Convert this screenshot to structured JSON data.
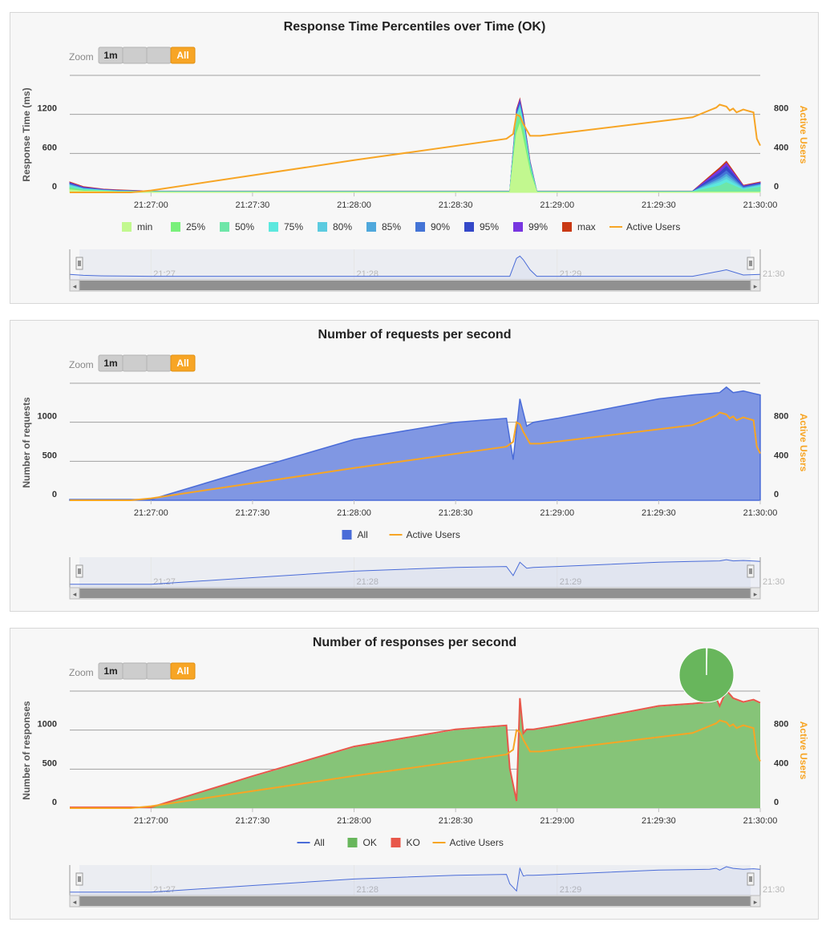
{
  "colors": {
    "active_users": "#f7a525",
    "all_requests": "#4a6cd8",
    "ok": "#68b65c",
    "ko": "#e8574a",
    "all_line": "#4a6cd8",
    "percentiles": [
      "#c2f88f",
      "#79f07b",
      "#6ee6a8",
      "#5ce8de",
      "#5ccbe0",
      "#4fa8dc",
      "#4474d6",
      "#3448c8",
      "#7836e0",
      "#c93914"
    ]
  },
  "zoom": {
    "label": "Zoom",
    "buttons": [
      "1m",
      "",
      "",
      "All"
    ],
    "selected": "All"
  },
  "navigator": {
    "labels": [
      "21:27",
      "21:28",
      "21:29",
      "21:30"
    ],
    "left_arrow": "◂",
    "right_arrow": "▸"
  },
  "chart_data": [
    {
      "type": "area",
      "title": "Response Time Percentiles over Time (OK)",
      "ylabel": "Response Time (ms)",
      "y2label": "Active Users",
      "ylim": [
        0,
        1800
      ],
      "y2lim": [
        0,
        1200
      ],
      "yticks": [
        0,
        600,
        1200
      ],
      "y2ticks": [
        0,
        400,
        800
      ],
      "x_tick_labels": [
        "21:27:00",
        "21:27:30",
        "21:28:00",
        "21:28:30",
        "21:29:00",
        "21:29:30",
        "21:30:00"
      ],
      "x_range_seconds": [
        -24,
        180
      ],
      "legend": [
        "min",
        "25%",
        "50%",
        "75%",
        "80%",
        "85%",
        "90%",
        "95%",
        "99%",
        "max",
        "Active Users"
      ],
      "grid": true,
      "legend_position": "bottom",
      "series": [
        {
          "name": "min",
          "x": [
            -24,
            -20,
            -14,
            -10,
            0,
            60,
            106,
            108,
            109,
            110,
            112,
            114,
            170,
            180
          ],
          "y": [
            40,
            20,
            15,
            10,
            5,
            5,
            5,
            900,
            1050,
            800,
            300,
            5,
            5,
            5
          ]
        },
        {
          "name": "25%",
          "x": [
            -24,
            -20,
            -14,
            -10,
            0,
            60,
            106,
            108,
            109,
            110,
            112,
            114,
            170,
            180
          ],
          "y": [
            60,
            30,
            20,
            10,
            8,
            8,
            8,
            1000,
            1150,
            900,
            350,
            8,
            8,
            8
          ]
        },
        {
          "name": "50%",
          "x": [
            -24,
            -20,
            -14,
            -10,
            0,
            60,
            106,
            108,
            109,
            110,
            112,
            114,
            160,
            168,
            170,
            175,
            180
          ],
          "y": [
            80,
            40,
            25,
            15,
            10,
            10,
            10,
            1100,
            1250,
            1000,
            400,
            10,
            10,
            100,
            150,
            40,
            80
          ]
        },
        {
          "name": "75%",
          "x": [
            -24,
            -20,
            -14,
            -10,
            0,
            60,
            106,
            108,
            109,
            110,
            112,
            114,
            160,
            168,
            170,
            175,
            180
          ],
          "y": [
            100,
            50,
            30,
            20,
            12,
            12,
            12,
            1150,
            1300,
            1050,
            420,
            12,
            12,
            150,
            200,
            50,
            100
          ]
        },
        {
          "name": "80%",
          "x": [
            -24,
            -20,
            -14,
            -10,
            0,
            60,
            106,
            108,
            109,
            110,
            112,
            114,
            160,
            168,
            170,
            175,
            180
          ],
          "y": [
            110,
            55,
            32,
            22,
            13,
            13,
            13,
            1170,
            1320,
            1070,
            430,
            13,
            13,
            180,
            240,
            60,
            110
          ]
        },
        {
          "name": "85%",
          "x": [
            -24,
            -20,
            -14,
            -10,
            0,
            60,
            106,
            108,
            109,
            110,
            112,
            114,
            160,
            168,
            170,
            175,
            180
          ],
          "y": [
            120,
            60,
            35,
            25,
            14,
            14,
            14,
            1190,
            1340,
            1090,
            440,
            14,
            14,
            210,
            280,
            70,
            120
          ]
        },
        {
          "name": "90%",
          "x": [
            -24,
            -20,
            -14,
            -10,
            0,
            60,
            106,
            108,
            109,
            110,
            112,
            114,
            160,
            168,
            170,
            175,
            180
          ],
          "y": [
            130,
            65,
            38,
            28,
            15,
            15,
            15,
            1210,
            1360,
            1110,
            450,
            15,
            15,
            250,
            330,
            80,
            130
          ]
        },
        {
          "name": "95%",
          "x": [
            -24,
            -20,
            -14,
            -10,
            0,
            60,
            106,
            108,
            109,
            110,
            112,
            114,
            160,
            168,
            170,
            175,
            180
          ],
          "y": [
            140,
            70,
            40,
            30,
            16,
            16,
            16,
            1230,
            1380,
            1130,
            460,
            16,
            16,
            300,
            400,
            90,
            140
          ]
        },
        {
          "name": "99%",
          "x": [
            -24,
            -20,
            -14,
            -10,
            0,
            60,
            106,
            108,
            109,
            110,
            112,
            114,
            160,
            168,
            170,
            175,
            180
          ],
          "y": [
            150,
            80,
            45,
            35,
            18,
            18,
            18,
            1260,
            1420,
            1160,
            470,
            18,
            18,
            350,
            450,
            100,
            150
          ]
        },
        {
          "name": "max",
          "x": [
            -24,
            -20,
            -14,
            -10,
            0,
            60,
            106,
            108,
            109,
            110,
            112,
            114,
            160,
            168,
            170,
            175,
            180
          ],
          "y": [
            160,
            90,
            50,
            40,
            20,
            20,
            20,
            1280,
            1440,
            1180,
            480,
            20,
            20,
            380,
            480,
            110,
            160
          ]
        },
        {
          "name": "Active Users",
          "axis": "right",
          "x": [
            -24,
            -20,
            -6,
            0,
            60,
            105,
            107,
            108,
            109,
            110,
            112,
            115,
            160,
            167,
            168,
            170,
            171,
            172,
            173,
            175,
            176,
            177,
            178,
            179,
            180
          ],
          "y": [
            0,
            0,
            0,
            20,
            330,
            550,
            600,
            800,
            780,
            700,
            580,
            580,
            770,
            870,
            900,
            880,
            840,
            860,
            820,
            850,
            840,
            830,
            820,
            550,
            480
          ]
        }
      ]
    },
    {
      "type": "area",
      "title": "Number of requests per second",
      "ylabel": "Number of requests",
      "y2label": "Active Users",
      "ylim": [
        0,
        1500
      ],
      "y2lim": [
        0,
        1200
      ],
      "yticks": [
        0,
        500,
        1000
      ],
      "y2ticks": [
        0,
        400,
        800
      ],
      "x_tick_labels": [
        "21:27:00",
        "21:27:30",
        "21:28:00",
        "21:28:30",
        "21:29:00",
        "21:29:30",
        "21:30:00"
      ],
      "x_range_seconds": [
        -24,
        180
      ],
      "legend": [
        "All",
        "Active Users"
      ],
      "grid": true,
      "legend_position": "bottom",
      "series": [
        {
          "name": "All",
          "x": [
            -24,
            0,
            30,
            60,
            90,
            105,
            107,
            109,
            111,
            113,
            120,
            150,
            160,
            168,
            170,
            172,
            175,
            178,
            180
          ],
          "y": [
            10,
            10,
            400,
            780,
            1000,
            1050,
            520,
            1300,
            950,
            1000,
            1050,
            1300,
            1350,
            1380,
            1450,
            1380,
            1400,
            1370,
            1350
          ]
        },
        {
          "name": "Active Users",
          "axis": "right",
          "x": [
            -24,
            -20,
            -6,
            0,
            60,
            105,
            107,
            108,
            109,
            110,
            112,
            115,
            160,
            167,
            168,
            170,
            171,
            172,
            173,
            175,
            176,
            177,
            178,
            179,
            180
          ],
          "y": [
            0,
            0,
            0,
            20,
            330,
            550,
            600,
            800,
            780,
            700,
            580,
            580,
            770,
            870,
            900,
            880,
            840,
            860,
            820,
            850,
            840,
            830,
            820,
            550,
            480
          ]
        }
      ]
    },
    {
      "type": "area",
      "title": "Number of responses per second",
      "ylabel": "Number of responses",
      "y2label": "Active Users",
      "ylim": [
        0,
        1500
      ],
      "y2lim": [
        0,
        1200
      ],
      "yticks": [
        0,
        500,
        1000
      ],
      "y2ticks": [
        0,
        400,
        800
      ],
      "x_tick_labels": [
        "21:27:00",
        "21:27:30",
        "21:28:00",
        "21:28:30",
        "21:29:00",
        "21:29:30",
        "21:30:00"
      ],
      "x_range_seconds": [
        -24,
        180
      ],
      "legend": [
        "All",
        "OK",
        "KO",
        "Active Users"
      ],
      "grid": true,
      "legend_position": "bottom",
      "pie": {
        "ok": 99.6,
        "ko": 0.4
      },
      "series": [
        {
          "name": "OK",
          "x": [
            -24,
            0,
            30,
            60,
            90,
            105,
            106,
            108,
            109,
            110,
            111,
            113,
            120,
            150,
            160,
            165,
            167,
            168,
            170,
            172,
            175,
            178,
            180
          ],
          "y": [
            10,
            10,
            400,
            780,
            1000,
            1050,
            500,
            80,
            1400,
            950,
            1000,
            1000,
            1050,
            1300,
            1330,
            1350,
            1400,
            1300,
            1500,
            1400,
            1350,
            1380,
            1340
          ]
        },
        {
          "name": "KO",
          "x": [
            -24,
            0,
            30,
            60,
            90,
            105,
            106,
            108,
            109,
            110,
            111,
            113,
            120,
            150,
            160,
            165,
            167,
            168,
            170,
            172,
            175,
            178,
            180
          ],
          "y": [
            10,
            10,
            410,
            790,
            1010,
            1060,
            510,
            90,
            1410,
            960,
            1010,
            1010,
            1060,
            1310,
            1340,
            1360,
            1410,
            1310,
            1510,
            1410,
            1360,
            1390,
            1350
          ]
        },
        {
          "name": "Active Users",
          "axis": "right",
          "x": [
            -24,
            -20,
            -6,
            0,
            60,
            105,
            107,
            108,
            109,
            110,
            112,
            115,
            160,
            167,
            168,
            170,
            171,
            172,
            173,
            175,
            176,
            177,
            178,
            179,
            180
          ],
          "y": [
            0,
            0,
            0,
            20,
            330,
            550,
            600,
            800,
            780,
            700,
            580,
            580,
            770,
            870,
            900,
            880,
            840,
            860,
            820,
            850,
            840,
            830,
            820,
            550,
            480
          ]
        }
      ]
    }
  ]
}
